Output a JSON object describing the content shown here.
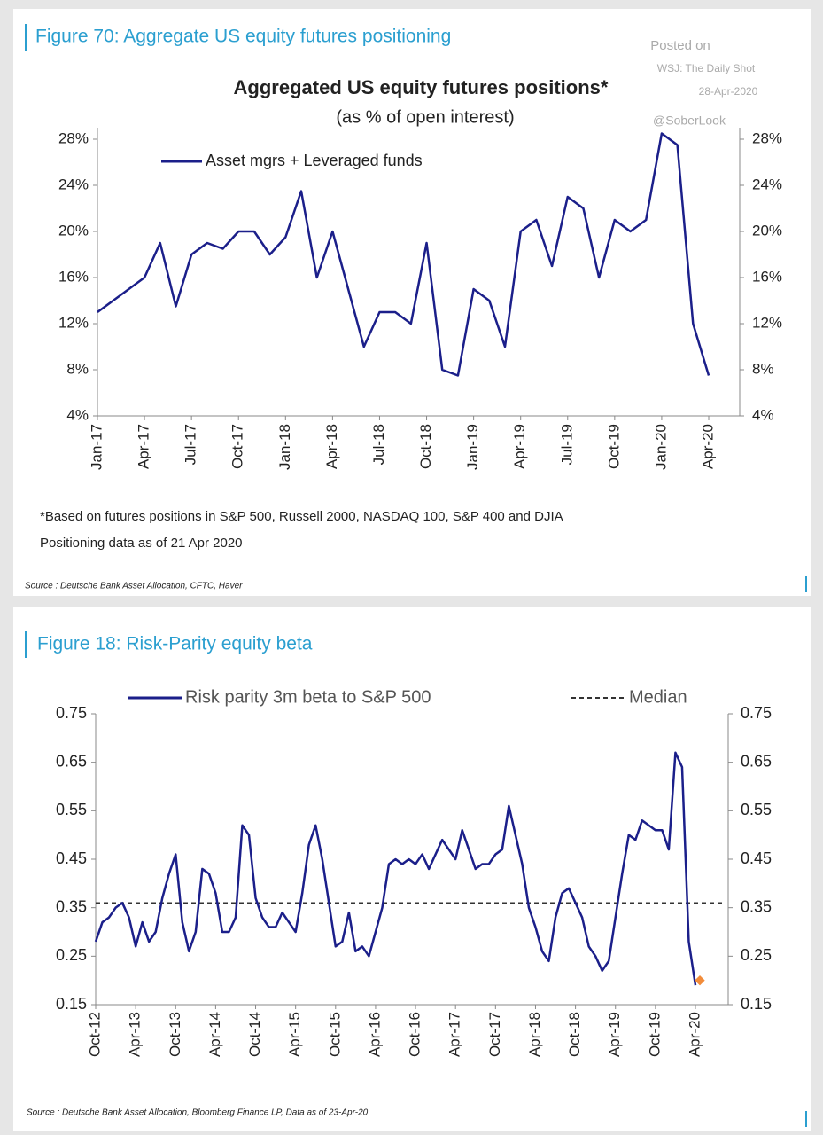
{
  "watermark": {
    "posted": "Posted on",
    "site": "WSJ: The Daily Shot",
    "date": "28-Apr-2020",
    "handle": "@SoberLook"
  },
  "chart_data": [
    {
      "type": "line",
      "header": "Figure 70: Aggregate US equity futures positioning",
      "title": "Aggregated US equity futures positions*",
      "subtitle": "(as % of open interest)",
      "categories": [
        "Jan-17",
        null,
        null,
        "Apr-17",
        null,
        null,
        "Jul-17",
        null,
        null,
        "Oct-17",
        null,
        null,
        "Jan-18",
        null,
        null,
        "Apr-18",
        null,
        null,
        "Jul-18",
        null,
        null,
        "Oct-18",
        null,
        null,
        "Jan-19",
        null,
        null,
        "Apr-19",
        null,
        null,
        "Jul-19",
        null,
        null,
        "Oct-19",
        null,
        null,
        "Jan-20",
        null,
        null,
        "Apr-20"
      ],
      "series": [
        {
          "name": "Asset mgrs + Leveraged funds",
          "color": "#1b1f8a",
          "values": [
            13,
            14,
            15,
            16,
            19,
            13.5,
            18,
            19,
            18.5,
            20,
            20,
            18,
            19.5,
            23.5,
            16,
            20,
            15,
            10,
            13,
            13,
            12,
            19,
            8,
            7.5,
            15,
            14,
            10,
            20,
            21,
            17,
            23,
            22,
            16,
            21,
            20,
            21,
            28.5,
            27.5,
            12,
            7.5
          ]
        }
      ],
      "ylim": [
        4,
        29
      ],
      "yticks": [
        {
          "value": 4,
          "label": "4%"
        },
        {
          "value": 8,
          "label": "8%"
        },
        {
          "value": 12,
          "label": "12%"
        },
        {
          "value": 16,
          "label": "16%"
        },
        {
          "value": 20,
          "label": "20%"
        },
        {
          "value": 24,
          "label": "24%"
        },
        {
          "value": 28,
          "label": "28%"
        }
      ],
      "notes": [
        "*Based on futures positions in S&P 500, Russell 2000, NASDAQ 100, S&P 400 and DJIA",
        "Positioning data as of 21 Apr 2020"
      ],
      "source": "Source : Deutsche Bank Asset Allocation, CFTC, Haver"
    },
    {
      "type": "line",
      "header": "Figure 18: Risk-Parity equity beta",
      "categories": [
        "Oct-12",
        null,
        null,
        null,
        null,
        null,
        "Apr-13",
        null,
        null,
        null,
        null,
        null,
        "Oct-13",
        null,
        null,
        null,
        null,
        null,
        "Apr-14",
        null,
        null,
        null,
        null,
        null,
        "Oct-14",
        null,
        null,
        null,
        null,
        null,
        "Apr-15",
        null,
        null,
        null,
        null,
        null,
        "Oct-15",
        null,
        null,
        null,
        null,
        null,
        "Apr-16",
        null,
        null,
        null,
        null,
        null,
        "Oct-16",
        null,
        null,
        null,
        null,
        null,
        "Apr-17",
        null,
        null,
        null,
        null,
        null,
        "Oct-17",
        null,
        null,
        null,
        null,
        null,
        "Apr-18",
        null,
        null,
        null,
        null,
        null,
        "Oct-18",
        null,
        null,
        null,
        null,
        null,
        "Apr-19",
        null,
        null,
        null,
        null,
        null,
        "Oct-19",
        null,
        null,
        null,
        null,
        null,
        "Apr-20"
      ],
      "series": [
        {
          "name": "Risk parity 3m beta to S&P 500",
          "color": "#1b1f8a",
          "values": [
            0.28,
            0.32,
            0.33,
            0.35,
            0.36,
            0.33,
            0.27,
            0.32,
            0.28,
            0.3,
            0.37,
            0.42,
            0.46,
            0.32,
            0.26,
            0.3,
            0.43,
            0.42,
            0.38,
            0.3,
            0.3,
            0.33,
            0.52,
            0.5,
            0.37,
            0.33,
            0.31,
            0.31,
            0.34,
            0.32,
            0.3,
            0.38,
            0.48,
            0.52,
            0.45,
            0.36,
            0.27,
            0.28,
            0.34,
            0.26,
            0.27,
            0.25,
            0.3,
            0.35,
            0.44,
            0.45,
            0.44,
            0.45,
            0.44,
            0.46,
            0.43,
            0.46,
            0.49,
            0.47,
            0.45,
            0.51,
            0.47,
            0.43,
            0.44,
            0.44,
            0.46,
            0.47,
            0.56,
            0.5,
            0.44,
            0.35,
            0.31,
            0.26,
            0.24,
            0.33,
            0.38,
            0.39,
            0.36,
            0.33,
            0.27,
            0.25,
            0.22,
            0.24,
            0.33,
            0.42,
            0.5,
            0.49,
            0.53,
            0.52,
            0.51,
            0.51,
            0.47,
            0.67,
            0.64,
            0.28,
            0.19
          ]
        }
      ],
      "reference_lines": [
        {
          "name": "Median",
          "value": 0.36,
          "color": "#333333",
          "dash": true
        }
      ],
      "latest_point": {
        "value": 0.2,
        "color": "#f28c3a"
      },
      "ylim": [
        0.15,
        0.75
      ],
      "yticks": [
        0.15,
        0.25,
        0.35,
        0.45,
        0.55,
        0.65,
        0.75
      ],
      "source": "Source : Deutsche Bank Asset Allocation, Bloomberg Finance LP, Data as of 23-Apr-20"
    }
  ]
}
